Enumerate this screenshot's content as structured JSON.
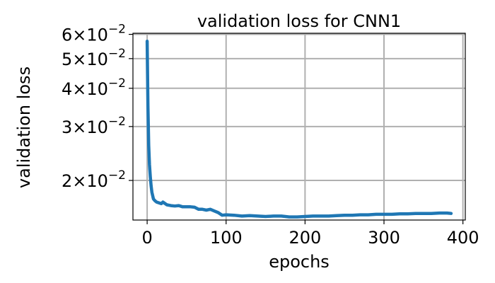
{
  "chart_data": {
    "type": "line",
    "title": "validation loss for CNN1",
    "xlabel": "epochs",
    "ylabel": "validation loss",
    "xlim": [
      -18,
      403
    ],
    "ylim": [
      0.01485,
      0.0605
    ],
    "yscale": "log",
    "grid": true,
    "line_color": "#1f77b4",
    "grid_color": "#b0b0b0",
    "x_ticks": [
      {
        "value": 0,
        "label": "0"
      },
      {
        "value": 100,
        "label": "100"
      },
      {
        "value": 200,
        "label": "200"
      },
      {
        "value": 300,
        "label": "300"
      },
      {
        "value": 400,
        "label": "400"
      }
    ],
    "y_ticks": [
      {
        "value": 0.02,
        "mantissa": "2",
        "exponent": "−2"
      },
      {
        "value": 0.03,
        "mantissa": "3",
        "exponent": "−2"
      },
      {
        "value": 0.04,
        "mantissa": "4",
        "exponent": "−2"
      },
      {
        "value": 0.05,
        "mantissa": "5",
        "exponent": "−2"
      },
      {
        "value": 0.06,
        "mantissa": "6",
        "exponent": "−2"
      }
    ],
    "series": [
      {
        "x": [
          0,
          1,
          2,
          3,
          4,
          5,
          6,
          8,
          10,
          12,
          15,
          18,
          20,
          25,
          30,
          35,
          40,
          45,
          50,
          55,
          60,
          65,
          70,
          75,
          80,
          85,
          90,
          95,
          100,
          110,
          120,
          130,
          140,
          150,
          160,
          170,
          180,
          190,
          200,
          210,
          220,
          230,
          240,
          250,
          260,
          270,
          280,
          290,
          300,
          310,
          320,
          330,
          340,
          350,
          360,
          370,
          380,
          385
        ],
        "y": [
          0.057,
          0.035,
          0.026,
          0.0225,
          0.0205,
          0.0192,
          0.0183,
          0.0174,
          0.01715,
          0.017,
          0.0169,
          0.0168,
          0.017,
          0.01665,
          0.01655,
          0.0165,
          0.01655,
          0.0164,
          0.0164,
          0.0164,
          0.01635,
          0.0161,
          0.0161,
          0.016,
          0.0161,
          0.0159,
          0.0157,
          0.0154,
          0.01545,
          0.0154,
          0.0153,
          0.01535,
          0.0153,
          0.01525,
          0.0153,
          0.0153,
          0.0152,
          0.0152,
          0.01525,
          0.0153,
          0.0153,
          0.0153,
          0.01535,
          0.0154,
          0.0154,
          0.01545,
          0.01545,
          0.0155,
          0.0155,
          0.0155,
          0.01555,
          0.01555,
          0.0156,
          0.0156,
          0.0156,
          0.01565,
          0.01565,
          0.0156
        ]
      }
    ]
  }
}
